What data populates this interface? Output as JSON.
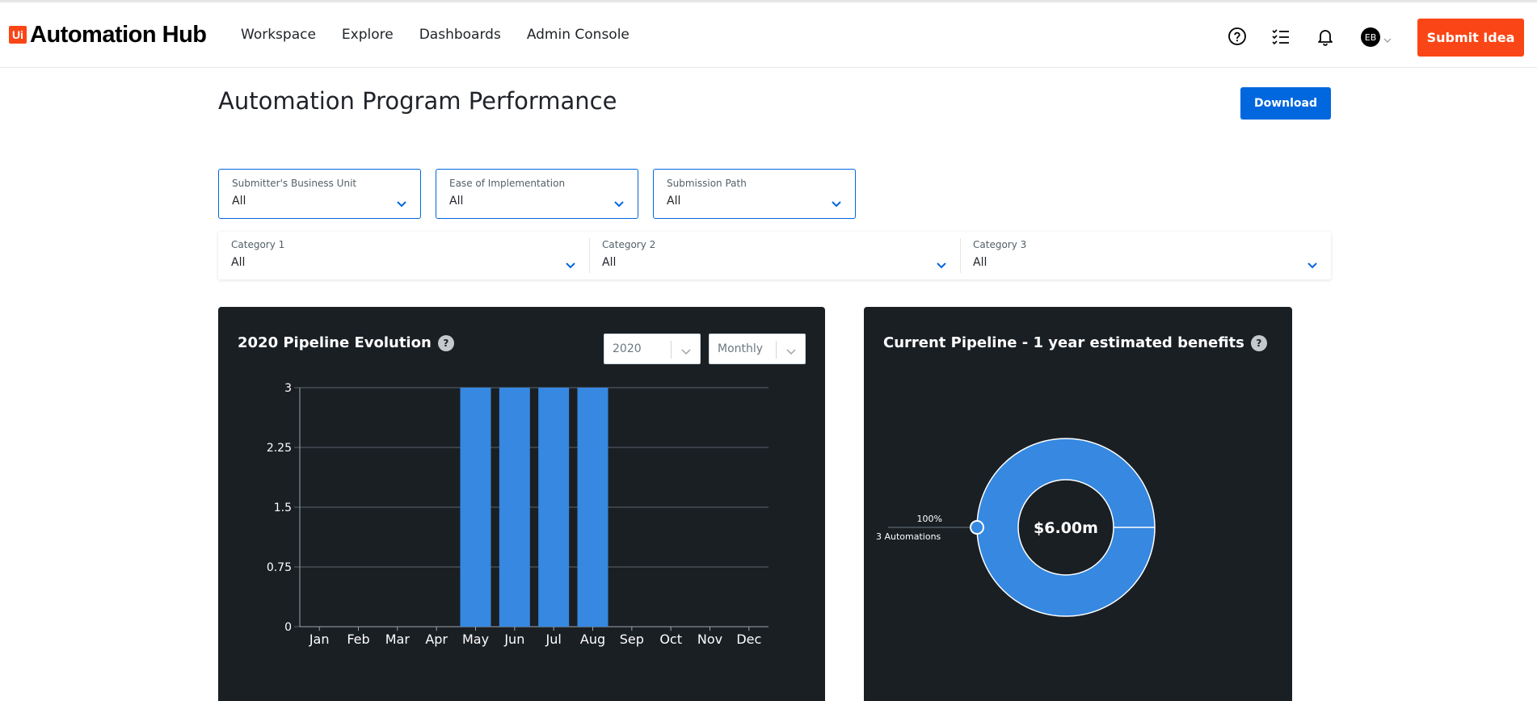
{
  "app": {
    "logo_mark": "Ui",
    "logo_text": "Automation Hub"
  },
  "nav": [
    "Workspace",
    "Explore",
    "Dashboards",
    "Admin Console"
  ],
  "header": {
    "icons": [
      "help-icon",
      "task-list-icon",
      "bell-icon"
    ],
    "avatar_initials": "EB",
    "submit_label": "Submit Idea"
  },
  "page": {
    "title": "Automation Program Performance",
    "download_label": "Download"
  },
  "filters": [
    {
      "label": "Submitter's Business Unit",
      "value": "All"
    },
    {
      "label": "Ease of Implementation",
      "value": "All"
    },
    {
      "label": "Submission Path",
      "value": "All"
    }
  ],
  "categories": [
    {
      "label": "Category 1",
      "value": "All"
    },
    {
      "label": "Category 2",
      "value": "All"
    },
    {
      "label": "Category 3",
      "value": "All"
    }
  ],
  "colors": {
    "accent": "#fa4616",
    "primary": "#0067df",
    "bar": "#3688e0",
    "card_bg": "#1a1f24"
  },
  "pipeline_card": {
    "title": "2020 Pipeline Evolution",
    "year_select": "2020",
    "period_select": "Monthly"
  },
  "benefits_card": {
    "title": "Current Pipeline - 1 year estimated benefits",
    "center_value": "$6.00m",
    "callout_percent": "100%",
    "callout_count": "3 Automations"
  },
  "chart_data": [
    {
      "type": "bar",
      "title": "2020 Pipeline Evolution",
      "categories": [
        "Jan",
        "Feb",
        "Mar",
        "Apr",
        "May",
        "Jun",
        "Jul",
        "Aug",
        "Sep",
        "Oct",
        "Nov",
        "Dec"
      ],
      "values": [
        0,
        0,
        0,
        0,
        3,
        3,
        3,
        3,
        0,
        0,
        0,
        0
      ],
      "yticks": [
        "0",
        "0.75",
        "1.5",
        "2.25",
        "3"
      ],
      "ylim": [
        0,
        3
      ],
      "grid": true
    },
    {
      "type": "pie",
      "title": "Current Pipeline - 1 year estimated benefits",
      "slices": [
        {
          "label": "3 Automations",
          "value": 100,
          "percent": "100%"
        }
      ],
      "center_label": "$6.00m"
    }
  ]
}
